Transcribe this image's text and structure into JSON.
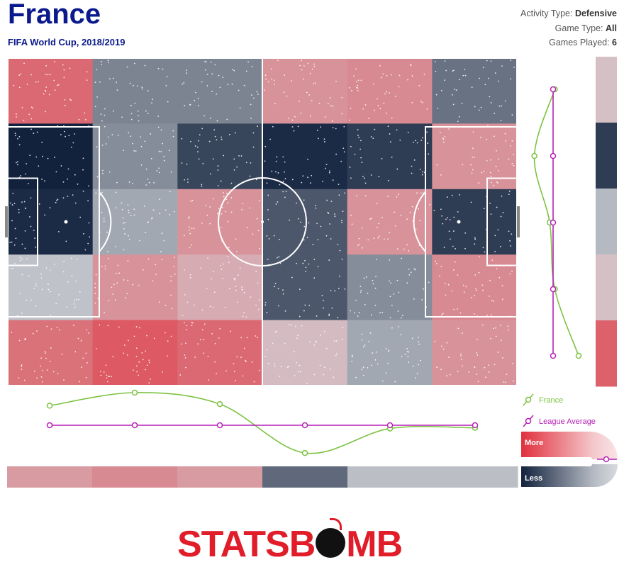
{
  "header": {
    "team": "France",
    "competition": "FIFA World Cup, 2018/2019",
    "meta": [
      {
        "label": "Activity Type: ",
        "value": "Defensive"
      },
      {
        "label": "Game Type: ",
        "value": "All"
      },
      {
        "label": "Games Played: ",
        "value": "6"
      }
    ]
  },
  "legend": {
    "team_label": "France",
    "league_label": "League Average",
    "more_label": "More",
    "less_label": "Less",
    "team_color": "#7dc242",
    "league_color": "#b620b6"
  },
  "colors": {
    "more": "#e0303c",
    "less": "#12223d",
    "mid": "#d2d4d8",
    "pitch_lines": "#ffffff"
  },
  "logo_text": {
    "left": "STATSB",
    "right": "MB"
  },
  "chart_data": [
    {
      "type": "heatmap",
      "title": "",
      "scale": "-1 (Less) to 1 (More)",
      "rows": 5,
      "cols": 6,
      "values": [
        [
          0.65,
          -0.45,
          -0.45,
          0.4,
          0.45,
          -0.55
        ],
        [
          -1.0,
          -0.4,
          -0.8,
          -0.95,
          -0.85,
          0.4
        ],
        [
          -0.95,
          -0.25,
          0.4,
          -0.7,
          0.4,
          -0.85
        ],
        [
          -0.1,
          0.4,
          0.25,
          -0.7,
          -0.4,
          0.45
        ],
        [
          0.6,
          0.75,
          0.65,
          0.15,
          -0.25,
          0.4
        ]
      ]
    },
    {
      "type": "line",
      "orientation": "columns",
      "series": [
        {
          "name": "France",
          "values": [
            0.6,
            1.0,
            0.65,
            -0.85,
            -0.1,
            -0.08
          ]
        },
        {
          "name": "League Average",
          "values": [
            0,
            0,
            0,
            0,
            0,
            0
          ]
        }
      ]
    },
    {
      "type": "heatmap",
      "orientation": "columns",
      "values": [
        0.35,
        0.45,
        0.35,
        -0.6,
        -0.12,
        -0.12
      ]
    },
    {
      "type": "line",
      "orientation": "rows",
      "series": [
        {
          "name": "France",
          "values": [
            0.05,
            -0.55,
            -0.1,
            0.05,
            0.75
          ]
        },
        {
          "name": "League Average",
          "values": [
            0,
            0,
            0,
            0,
            0
          ]
        }
      ]
    },
    {
      "type": "heatmap",
      "orientation": "rows",
      "values": [
        0.12,
        -0.85,
        -0.15,
        0.12,
        0.7
      ]
    }
  ]
}
